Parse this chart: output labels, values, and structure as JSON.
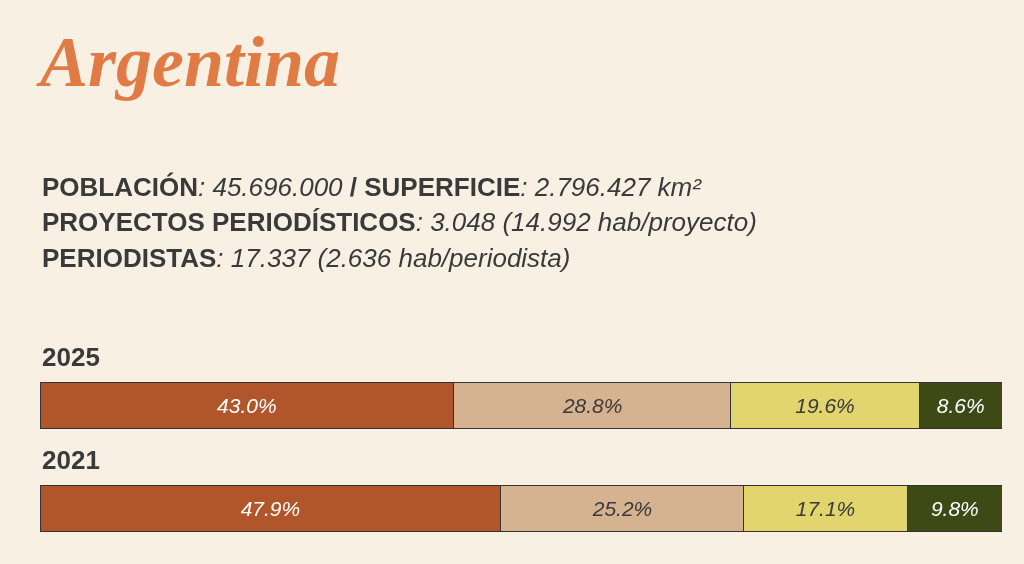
{
  "chart_data": {
    "type": "bar",
    "orientation": "horizontal",
    "stacked": true,
    "title": "Argentina",
    "annotations": [
      "POBLACIÓN: 45.696.000 / SUPERFICIE: 2.796.427 km²",
      "PROYECTOS PERIODÍSTICOS: 3.048 (14.992 hab/proyecto)",
      "PERIODISTAS: 17.337 (2.636 hab/periodista)"
    ],
    "categories": [
      "2025",
      "2021"
    ],
    "xlim": [
      0,
      100
    ],
    "tick_labels": "y",
    "series": [
      {
        "color": "#b0562a",
        "values": [
          43.0,
          47.9
        ],
        "value_labels": [
          "43.0%",
          "47.9%"
        ]
      },
      {
        "color": "#d5b290",
        "values": [
          28.8,
          25.2
        ],
        "value_labels": [
          "28.8%",
          "25.2%"
        ]
      },
      {
        "color": "#e2d56d",
        "values": [
          19.6,
          17.1
        ],
        "value_labels": [
          "19.6%",
          "17.1%"
        ]
      },
      {
        "color": "#3d4a16",
        "values": [
          8.6,
          9.8
        ],
        "value_labels": [
          "8.6%",
          "9.8%"
        ]
      }
    ]
  }
}
